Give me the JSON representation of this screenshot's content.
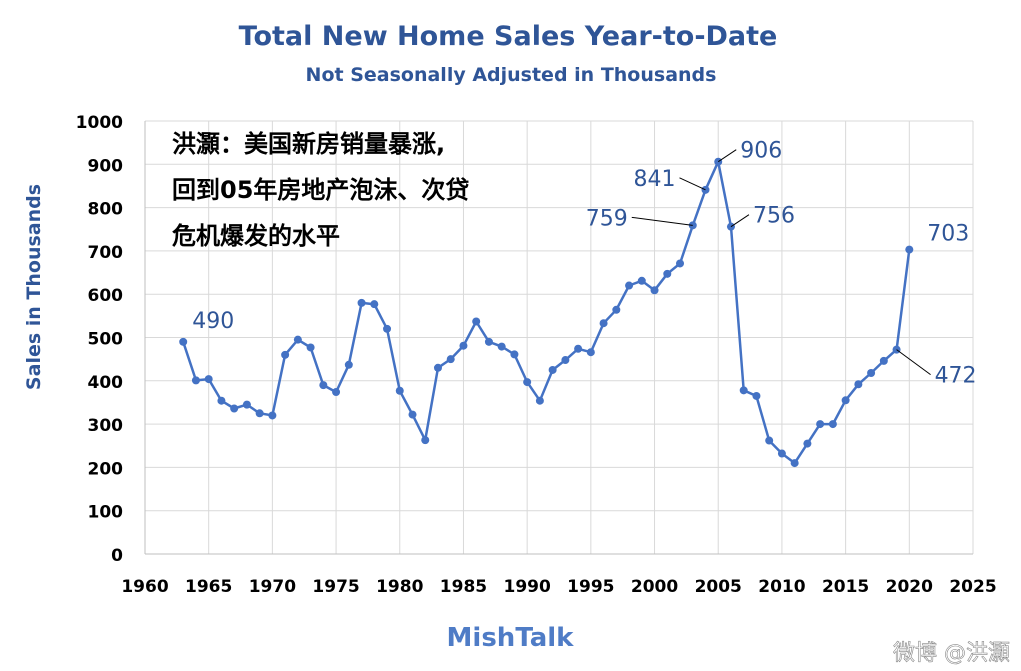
{
  "chart_data": {
    "type": "line",
    "title": "Total New Home Sales Year-to-Date",
    "subtitle": "Not Seasonally Adjusted in Thousands",
    "xlabel": "",
    "ylabel": "Sales in Thousands",
    "xlim": [
      1960,
      2025
    ],
    "ylim": [
      0,
      1000
    ],
    "x_ticks": [
      1960,
      1965,
      1970,
      1975,
      1980,
      1985,
      1990,
      1995,
      2000,
      2005,
      2010,
      2015,
      2020,
      2025
    ],
    "y_ticks": [
      0,
      100,
      200,
      300,
      400,
      500,
      600,
      700,
      800,
      900,
      1000
    ],
    "grid": true,
    "legend": "none",
    "series": [
      {
        "color": "#4472c4",
        "x": [
          1963,
          1964,
          1965,
          1966,
          1967,
          1968,
          1969,
          1970,
          1971,
          1972,
          1973,
          1974,
          1975,
          1976,
          1977,
          1978,
          1979,
          1980,
          1981,
          1982,
          1983,
          1984,
          1985,
          1986,
          1987,
          1988,
          1989,
          1990,
          1991,
          1992,
          1993,
          1994,
          1995,
          1996,
          1997,
          1998,
          1999,
          2000,
          2001,
          2002,
          2003,
          2004,
          2005,
          2006,
          2007,
          2008,
          2009,
          2010,
          2011,
          2012,
          2013,
          2014,
          2015,
          2016,
          2017,
          2018,
          2019,
          2020
        ],
        "y": [
          490,
          401,
          404,
          354,
          336,
          345,
          325,
          320,
          460,
          495,
          477,
          390,
          374,
          437,
          580,
          577,
          520,
          377,
          322,
          263,
          430,
          450,
          481,
          537,
          490,
          479,
          461,
          397,
          354,
          425,
          448,
          474,
          466,
          533,
          564,
          620,
          631,
          609,
          647,
          671,
          759,
          841,
          906,
          756,
          378,
          365,
          262,
          232,
          210,
          255,
          300,
          300,
          355,
          392,
          418,
          446,
          472,
          703
        ]
      }
    ],
    "data_labels": [
      {
        "x": 1963,
        "y": 490,
        "text": "490"
      },
      {
        "x": 2003,
        "y": 759,
        "text": "759"
      },
      {
        "x": 2004,
        "y": 841,
        "text": "841"
      },
      {
        "x": 2005,
        "y": 906,
        "text": "906"
      },
      {
        "x": 2006,
        "y": 756,
        "text": "756"
      },
      {
        "x": 2019,
        "y": 472,
        "text": "472"
      },
      {
        "x": 2020,
        "y": 703,
        "text": "703"
      }
    ],
    "annotation": [
      "洪灝：美国新房销量暴涨,",
      "回到05年房地产泡沫、次贷",
      "危机爆发的水平"
    ],
    "source": "MishTalk",
    "watermark": "微博 @洪灝"
  },
  "colors": {
    "title": "#2f5597",
    "line": "#4472c4",
    "grid": "#d9d9d9",
    "label": "#2f5597"
  }
}
